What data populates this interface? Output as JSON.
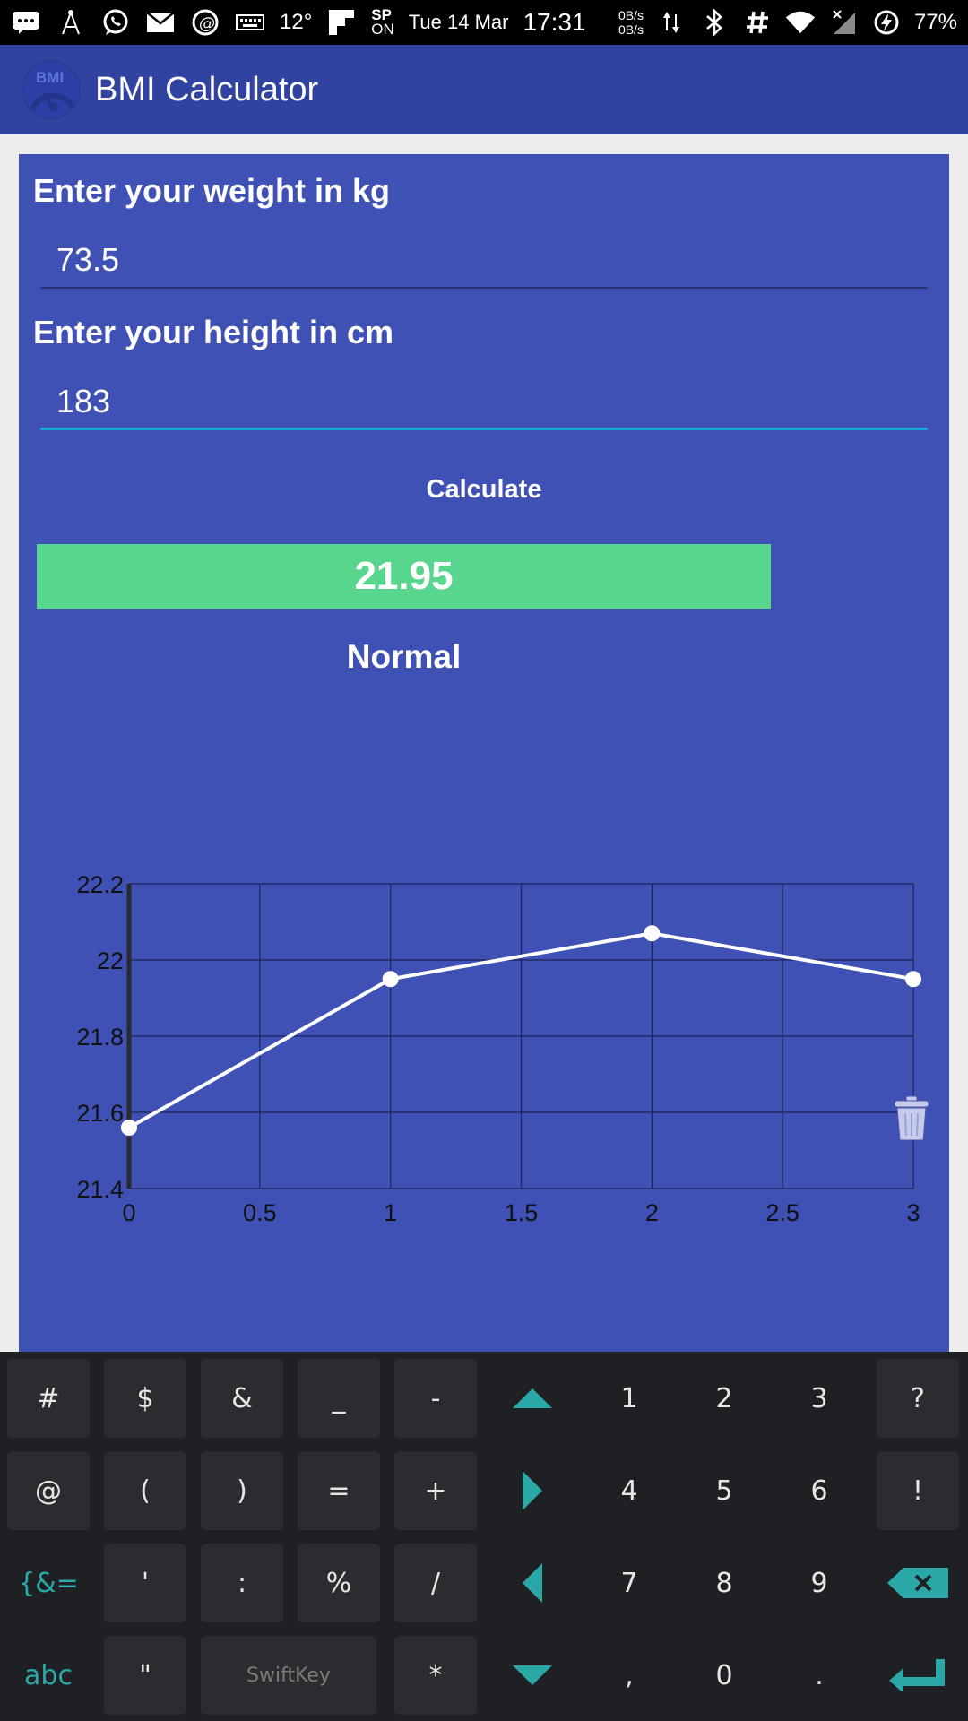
{
  "status_bar": {
    "temperature": "12°",
    "sp_label_top": "SP",
    "sp_label_bottom": "ON",
    "date": "Tue 14 Mar",
    "time": "17:31",
    "net_up": "0B/s",
    "net_down": "0B/s",
    "battery": "77%"
  },
  "app_bar": {
    "logo_text": "BMI",
    "title": "BMI Calculator"
  },
  "form": {
    "weight_label": "Enter your weight in kg",
    "weight_value": "73.5",
    "height_label": "Enter your height in cm",
    "height_value": "183",
    "calculate_label": "Calculate"
  },
  "result": {
    "bmi": "21.95",
    "category": "Normal",
    "box_color": "#58d68d"
  },
  "chart_data": {
    "type": "line",
    "x": [
      0,
      1,
      2,
      3
    ],
    "y": [
      21.56,
      21.95,
      22.07,
      21.95
    ],
    "xlim": [
      0,
      3
    ],
    "ylim": [
      21.4,
      22.2
    ],
    "x_ticks": [
      "0",
      "0.5",
      "1",
      "1.5",
      "2",
      "2.5",
      "3"
    ],
    "y_ticks": [
      "22.2",
      "22",
      "21.8",
      "21.6",
      "21.4"
    ],
    "grid": true,
    "line_color": "#ffffff"
  },
  "actions": {
    "delete_icon": "trash-icon"
  },
  "keyboard": {
    "brand": "SwiftKey",
    "rows": [
      [
        "#",
        "$",
        "&",
        "_",
        "-",
        "up-arrow-icon",
        "1",
        "2",
        "3",
        "?"
      ],
      [
        "@",
        "(",
        ")",
        "=",
        "+",
        "right-arrow-icon",
        "4",
        "5",
        "6",
        "!"
      ],
      [
        "{&=",
        "'",
        ":",
        "%",
        "/",
        "left-arrow-icon",
        "7",
        "8",
        "9",
        "backspace-icon"
      ],
      [
        "abc",
        "\"",
        "space",
        "*",
        "down-arrow-icon",
        ",",
        "0",
        ".",
        "enter-icon"
      ]
    ],
    "accent": "#2aa7a7"
  }
}
